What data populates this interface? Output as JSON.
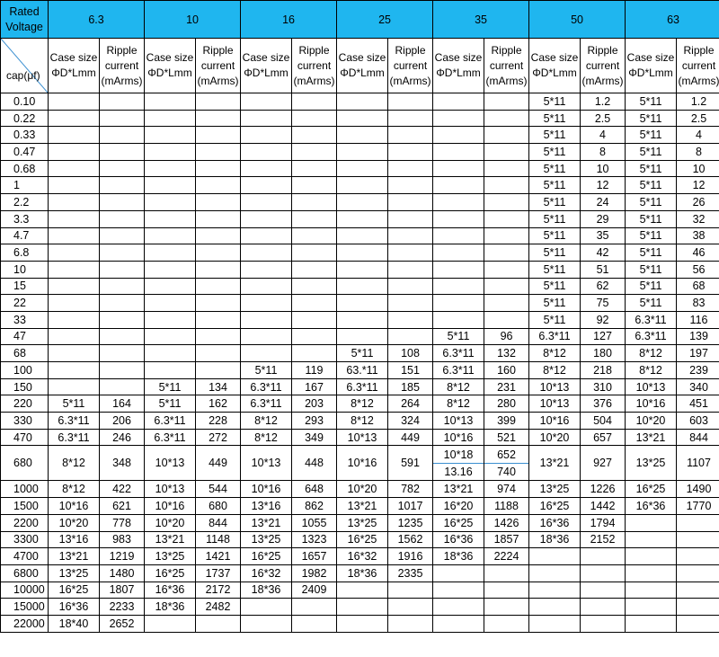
{
  "header": {
    "rated_voltage": "Rated Voltage",
    "cap_unit": "cap(μf)",
    "voltages": [
      "6.3",
      "10",
      "16",
      "25",
      "35",
      "50",
      "63"
    ],
    "case_size": "Case size ΦD*Lmm",
    "ripple": "Ripple current (mArms)"
  },
  "rows": [
    {
      "cap": "0.10",
      "cells": [
        [
          "",
          ""
        ],
        [
          "",
          ""
        ],
        [
          "",
          ""
        ],
        [
          "",
          ""
        ],
        [
          "",
          ""
        ],
        [
          "5*11",
          "1.2"
        ],
        [
          "5*11",
          "1.2"
        ]
      ]
    },
    {
      "cap": "0.22",
      "cells": [
        [
          "",
          ""
        ],
        [
          "",
          ""
        ],
        [
          "",
          ""
        ],
        [
          "",
          ""
        ],
        [
          "",
          ""
        ],
        [
          "5*11",
          "2.5"
        ],
        [
          "5*11",
          "2.5"
        ]
      ]
    },
    {
      "cap": "0.33",
      "cells": [
        [
          "",
          ""
        ],
        [
          "",
          ""
        ],
        [
          "",
          ""
        ],
        [
          "",
          ""
        ],
        [
          "",
          ""
        ],
        [
          "5*11",
          "4"
        ],
        [
          "5*11",
          "4"
        ]
      ]
    },
    {
      "cap": "0.47",
      "cells": [
        [
          "",
          ""
        ],
        [
          "",
          ""
        ],
        [
          "",
          ""
        ],
        [
          "",
          ""
        ],
        [
          "",
          ""
        ],
        [
          "5*11",
          "8"
        ],
        [
          "5*11",
          "8"
        ]
      ]
    },
    {
      "cap": "0.68",
      "cells": [
        [
          "",
          ""
        ],
        [
          "",
          ""
        ],
        [
          "",
          ""
        ],
        [
          "",
          ""
        ],
        [
          "",
          ""
        ],
        [
          "5*11",
          "10"
        ],
        [
          "5*11",
          "10"
        ]
      ]
    },
    {
      "cap": "1",
      "cells": [
        [
          "",
          ""
        ],
        [
          "",
          ""
        ],
        [
          "",
          ""
        ],
        [
          "",
          ""
        ],
        [
          "",
          ""
        ],
        [
          "5*11",
          "12"
        ],
        [
          "5*11",
          "12"
        ]
      ]
    },
    {
      "cap": "2.2",
      "cells": [
        [
          "",
          ""
        ],
        [
          "",
          ""
        ],
        [
          "",
          ""
        ],
        [
          "",
          ""
        ],
        [
          "",
          ""
        ],
        [
          "5*11",
          "24"
        ],
        [
          "5*11",
          "26"
        ]
      ]
    },
    {
      "cap": "3.3",
      "cells": [
        [
          "",
          ""
        ],
        [
          "",
          ""
        ],
        [
          "",
          ""
        ],
        [
          "",
          ""
        ],
        [
          "",
          ""
        ],
        [
          "5*11",
          "29"
        ],
        [
          "5*11",
          "32"
        ]
      ]
    },
    {
      "cap": "4.7",
      "cells": [
        [
          "",
          ""
        ],
        [
          "",
          ""
        ],
        [
          "",
          ""
        ],
        [
          "",
          ""
        ],
        [
          "",
          ""
        ],
        [
          "5*11",
          "35"
        ],
        [
          "5*11",
          "38"
        ]
      ]
    },
    {
      "cap": "6.8",
      "cells": [
        [
          "",
          ""
        ],
        [
          "",
          ""
        ],
        [
          "",
          ""
        ],
        [
          "",
          ""
        ],
        [
          "",
          ""
        ],
        [
          "5*11",
          "42"
        ],
        [
          "5*11",
          "46"
        ]
      ]
    },
    {
      "cap": "10",
      "cells": [
        [
          "",
          ""
        ],
        [
          "",
          ""
        ],
        [
          "",
          ""
        ],
        [
          "",
          ""
        ],
        [
          "",
          ""
        ],
        [
          "5*11",
          "51"
        ],
        [
          "5*11",
          "56"
        ]
      ]
    },
    {
      "cap": "15",
      "cells": [
        [
          "",
          ""
        ],
        [
          "",
          ""
        ],
        [
          "",
          ""
        ],
        [
          "",
          ""
        ],
        [
          "",
          ""
        ],
        [
          "5*11",
          "62"
        ],
        [
          "5*11",
          "68"
        ]
      ]
    },
    {
      "cap": "22",
      "cells": [
        [
          "",
          ""
        ],
        [
          "",
          ""
        ],
        [
          "",
          ""
        ],
        [
          "",
          ""
        ],
        [
          "",
          ""
        ],
        [
          "5*11",
          "75"
        ],
        [
          "5*11",
          "83"
        ]
      ]
    },
    {
      "cap": "33",
      "cells": [
        [
          "",
          ""
        ],
        [
          "",
          ""
        ],
        [
          "",
          ""
        ],
        [
          "",
          ""
        ],
        [
          "",
          ""
        ],
        [
          "5*11",
          "92"
        ],
        [
          "6.3*11",
          "116"
        ]
      ]
    },
    {
      "cap": "47",
      "cells": [
        [
          "",
          ""
        ],
        [
          "",
          ""
        ],
        [
          "",
          ""
        ],
        [
          "",
          ""
        ],
        [
          "5*11",
          "96"
        ],
        [
          "6.3*11",
          "127"
        ],
        [
          "6.3*11",
          "139"
        ]
      ]
    },
    {
      "cap": "68",
      "cells": [
        [
          "",
          ""
        ],
        [
          "",
          ""
        ],
        [
          "",
          ""
        ],
        [
          "5*11",
          "108"
        ],
        [
          "6.3*11",
          "132"
        ],
        [
          "8*12",
          "180"
        ],
        [
          "8*12",
          "197"
        ]
      ]
    },
    {
      "cap": "100",
      "cells": [
        [
          "",
          ""
        ],
        [
          "",
          ""
        ],
        [
          "5*11",
          "119"
        ],
        [
          "63.*11",
          "151"
        ],
        [
          "6.3*11",
          "160"
        ],
        [
          "8*12",
          "218"
        ],
        [
          "8*12",
          "239"
        ]
      ]
    },
    {
      "cap": "150",
      "cells": [
        [
          "",
          ""
        ],
        [
          "5*11",
          "134"
        ],
        [
          "6.3*11",
          "167"
        ],
        [
          "6.3*11",
          "185"
        ],
        [
          "8*12",
          "231"
        ],
        [
          "10*13",
          "310"
        ],
        [
          "10*13",
          "340"
        ]
      ]
    },
    {
      "cap": "220",
      "cells": [
        [
          "5*11",
          "164"
        ],
        [
          "5*11",
          "162"
        ],
        [
          "6.3*11",
          "203"
        ],
        [
          "8*12",
          "264"
        ],
        [
          "8*12",
          "280"
        ],
        [
          "10*13",
          "376"
        ],
        [
          "10*16",
          "451"
        ]
      ]
    },
    {
      "cap": "330",
      "cells": [
        [
          "6.3*11",
          "206"
        ],
        [
          "6.3*11",
          "228"
        ],
        [
          "8*12",
          "293"
        ],
        [
          "8*12",
          "324"
        ],
        [
          "10*13",
          "399"
        ],
        [
          "10*16",
          "504"
        ],
        [
          "10*20",
          "603"
        ]
      ]
    },
    {
      "cap": "470",
      "cells": [
        [
          "6.3*11",
          "246"
        ],
        [
          "6.3*11",
          "272"
        ],
        [
          "8*12",
          "349"
        ],
        [
          "10*13",
          "449"
        ],
        [
          "10*16",
          "521"
        ],
        [
          "10*20",
          "657"
        ],
        [
          "13*21",
          "844"
        ]
      ]
    },
    {
      "cap": "680",
      "cells": [
        [
          "8*12",
          "348"
        ],
        [
          "10*13",
          "449"
        ],
        [
          "10*13",
          "448"
        ],
        [
          "10*16",
          "591"
        ],
        [
          "10*18|13.16",
          "652|740"
        ],
        [
          "13*21",
          "927"
        ],
        [
          "13*25",
          "1107"
        ]
      ]
    },
    {
      "cap": "1000",
      "cells": [
        [
          "8*12",
          "422"
        ],
        [
          "10*13",
          "544"
        ],
        [
          "10*16",
          "648"
        ],
        [
          "10*20",
          "782"
        ],
        [
          "13*21",
          "974"
        ],
        [
          "13*25",
          "1226"
        ],
        [
          "16*25",
          "1490"
        ]
      ]
    },
    {
      "cap": "1500",
      "cells": [
        [
          "10*16",
          "621"
        ],
        [
          "10*16",
          "680"
        ],
        [
          "13*16",
          "862"
        ],
        [
          "13*21",
          "1017"
        ],
        [
          "16*20",
          "1188"
        ],
        [
          "16*25",
          "1442"
        ],
        [
          "16*36",
          "1770"
        ]
      ]
    },
    {
      "cap": "2200",
      "cells": [
        [
          "10*20",
          "778"
        ],
        [
          "10*20",
          "844"
        ],
        [
          "13*21",
          "1055"
        ],
        [
          "13*25",
          "1235"
        ],
        [
          "16*25",
          "1426"
        ],
        [
          "16*36",
          "1794"
        ],
        [
          "",
          ""
        ]
      ]
    },
    {
      "cap": "3300",
      "cells": [
        [
          "13*16",
          "983"
        ],
        [
          "13*21",
          "1148"
        ],
        [
          "13*25",
          "1323"
        ],
        [
          "16*25",
          "1562"
        ],
        [
          "16*36",
          "1857"
        ],
        [
          "18*36",
          "2152"
        ],
        [
          "",
          ""
        ]
      ]
    },
    {
      "cap": "4700",
      "cells": [
        [
          "13*21",
          "1219"
        ],
        [
          "13*25",
          "1421"
        ],
        [
          "16*25",
          "1657"
        ],
        [
          "16*32",
          "1916"
        ],
        [
          "18*36",
          "2224"
        ],
        [
          "",
          ""
        ],
        [
          "",
          ""
        ]
      ]
    },
    {
      "cap": "6800",
      "cells": [
        [
          "13*25",
          "1480"
        ],
        [
          "16*25",
          "1737"
        ],
        [
          "16*32",
          "1982"
        ],
        [
          "18*36",
          "2335"
        ],
        [
          "",
          ""
        ],
        [
          "",
          ""
        ],
        [
          "",
          ""
        ]
      ]
    },
    {
      "cap": "10000",
      "cells": [
        [
          "16*25",
          "1807"
        ],
        [
          "16*36",
          "2172"
        ],
        [
          "18*36",
          "2409"
        ],
        [
          "",
          ""
        ],
        [
          "",
          ""
        ],
        [
          "",
          ""
        ],
        [
          "",
          ""
        ]
      ]
    },
    {
      "cap": "15000",
      "cells": [
        [
          "16*36",
          "2233"
        ],
        [
          "18*36",
          "2482"
        ],
        [
          "",
          ""
        ],
        [
          "",
          ""
        ],
        [
          "",
          ""
        ],
        [
          "",
          ""
        ],
        [
          "",
          ""
        ]
      ]
    },
    {
      "cap": "22000",
      "cells": [
        [
          "18*40",
          "2652"
        ],
        [
          "",
          ""
        ],
        [
          "",
          ""
        ],
        [
          "",
          ""
        ],
        [
          "",
          ""
        ],
        [
          "",
          ""
        ],
        [
          "",
          ""
        ]
      ]
    }
  ]
}
